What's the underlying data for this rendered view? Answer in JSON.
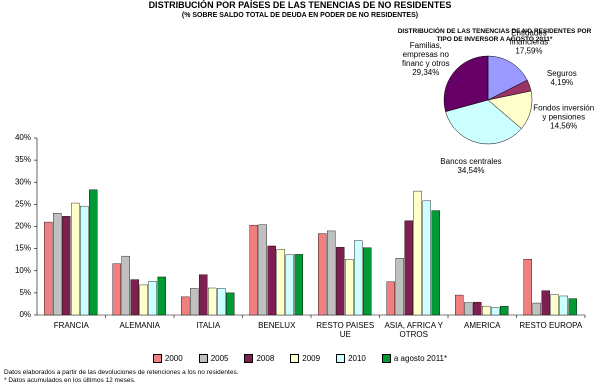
{
  "chart_data": [
    {
      "type": "bar",
      "title": "DISTRIBUCIÓN POR PAÍSES DE LAS TENENCIAS DE NO RESIDENTES",
      "subtitle": "(% SOBRE SALDO TOTAL DE DEUDA EN PODER DE NO RESIDENTES)",
      "categories": [
        "FRANCIA",
        "ALEMANIA",
        "ITALIA",
        "BENELUX",
        "RESTO PAISES UE",
        "ASIA, AFRICA Y OTROS",
        "AMERICA",
        "RESTO EUROPA"
      ],
      "series": [
        {
          "name": "2000",
          "color": "#f08080",
          "values": [
            21,
            11.6,
            4.1,
            20.3,
            18.4,
            7.5,
            4.5,
            12.6
          ]
        },
        {
          "name": "2005",
          "color": "#c0c0c0",
          "values": [
            23,
            13.3,
            6,
            20.4,
            19,
            12.8,
            2.8,
            2.7
          ]
        },
        {
          "name": "2008",
          "color": "#7f1f4f",
          "values": [
            22.3,
            8,
            9.1,
            15.6,
            15.3,
            21.3,
            2.9,
            5.5
          ]
        },
        {
          "name": "2009",
          "color": "#ffffcc",
          "values": [
            25.3,
            6.8,
            6.1,
            14.8,
            12.6,
            28,
            2,
            4.6
          ]
        },
        {
          "name": "2010",
          "color": "#ccffff",
          "values": [
            24.6,
            7.6,
            6,
            13.6,
            16.8,
            25.8,
            1.7,
            4.3
          ]
        },
        {
          "name": "a agosto 2011*",
          "color": "#009933",
          "values": [
            28.3,
            8.6,
            5,
            13.7,
            15.2,
            23.6,
            2,
            3.7
          ]
        }
      ],
      "ylim": [
        0,
        40
      ],
      "yticks": [
        {
          "value": 0,
          "label": "0%"
        },
        {
          "value": 5,
          "label": "5%"
        },
        {
          "value": 10,
          "label": "10%"
        },
        {
          "value": 15,
          "label": "15%"
        },
        {
          "value": 20,
          "label": "20%"
        },
        {
          "value": 25,
          "label": "25%"
        },
        {
          "value": 30,
          "label": "30%"
        },
        {
          "value": 35,
          "label": "35%"
        },
        {
          "value": 40,
          "label": "40%"
        }
      ],
      "notes": [
        "Datos elaborados a partir de las devoluciones de retenciones a los no residentes.",
        "* Datos acumulados en los últimos 12 meses."
      ]
    },
    {
      "type": "pie",
      "title": "DISTRIBUCIÓN DE LAS TENENCIAS DE NO RESIDENTES POR TIPO DE INVERSOR A AGOSTO 2011*",
      "categories": [
        "Entidades financieras",
        "Seguros",
        "Fondos inversión y pensiones",
        "Bancos centrales",
        "Familias, empresas no financ y otros"
      ],
      "values": [
        17.59,
        4.19,
        14.56,
        34.54,
        29.34
      ],
      "value_labels": [
        "17,59%",
        "4,19%",
        "14,56%",
        "34,54%",
        "29,34%"
      ],
      "colors": [
        "#9999ff",
        "#993366",
        "#ffffcc",
        "#ccffff",
        "#660066"
      ]
    }
  ]
}
